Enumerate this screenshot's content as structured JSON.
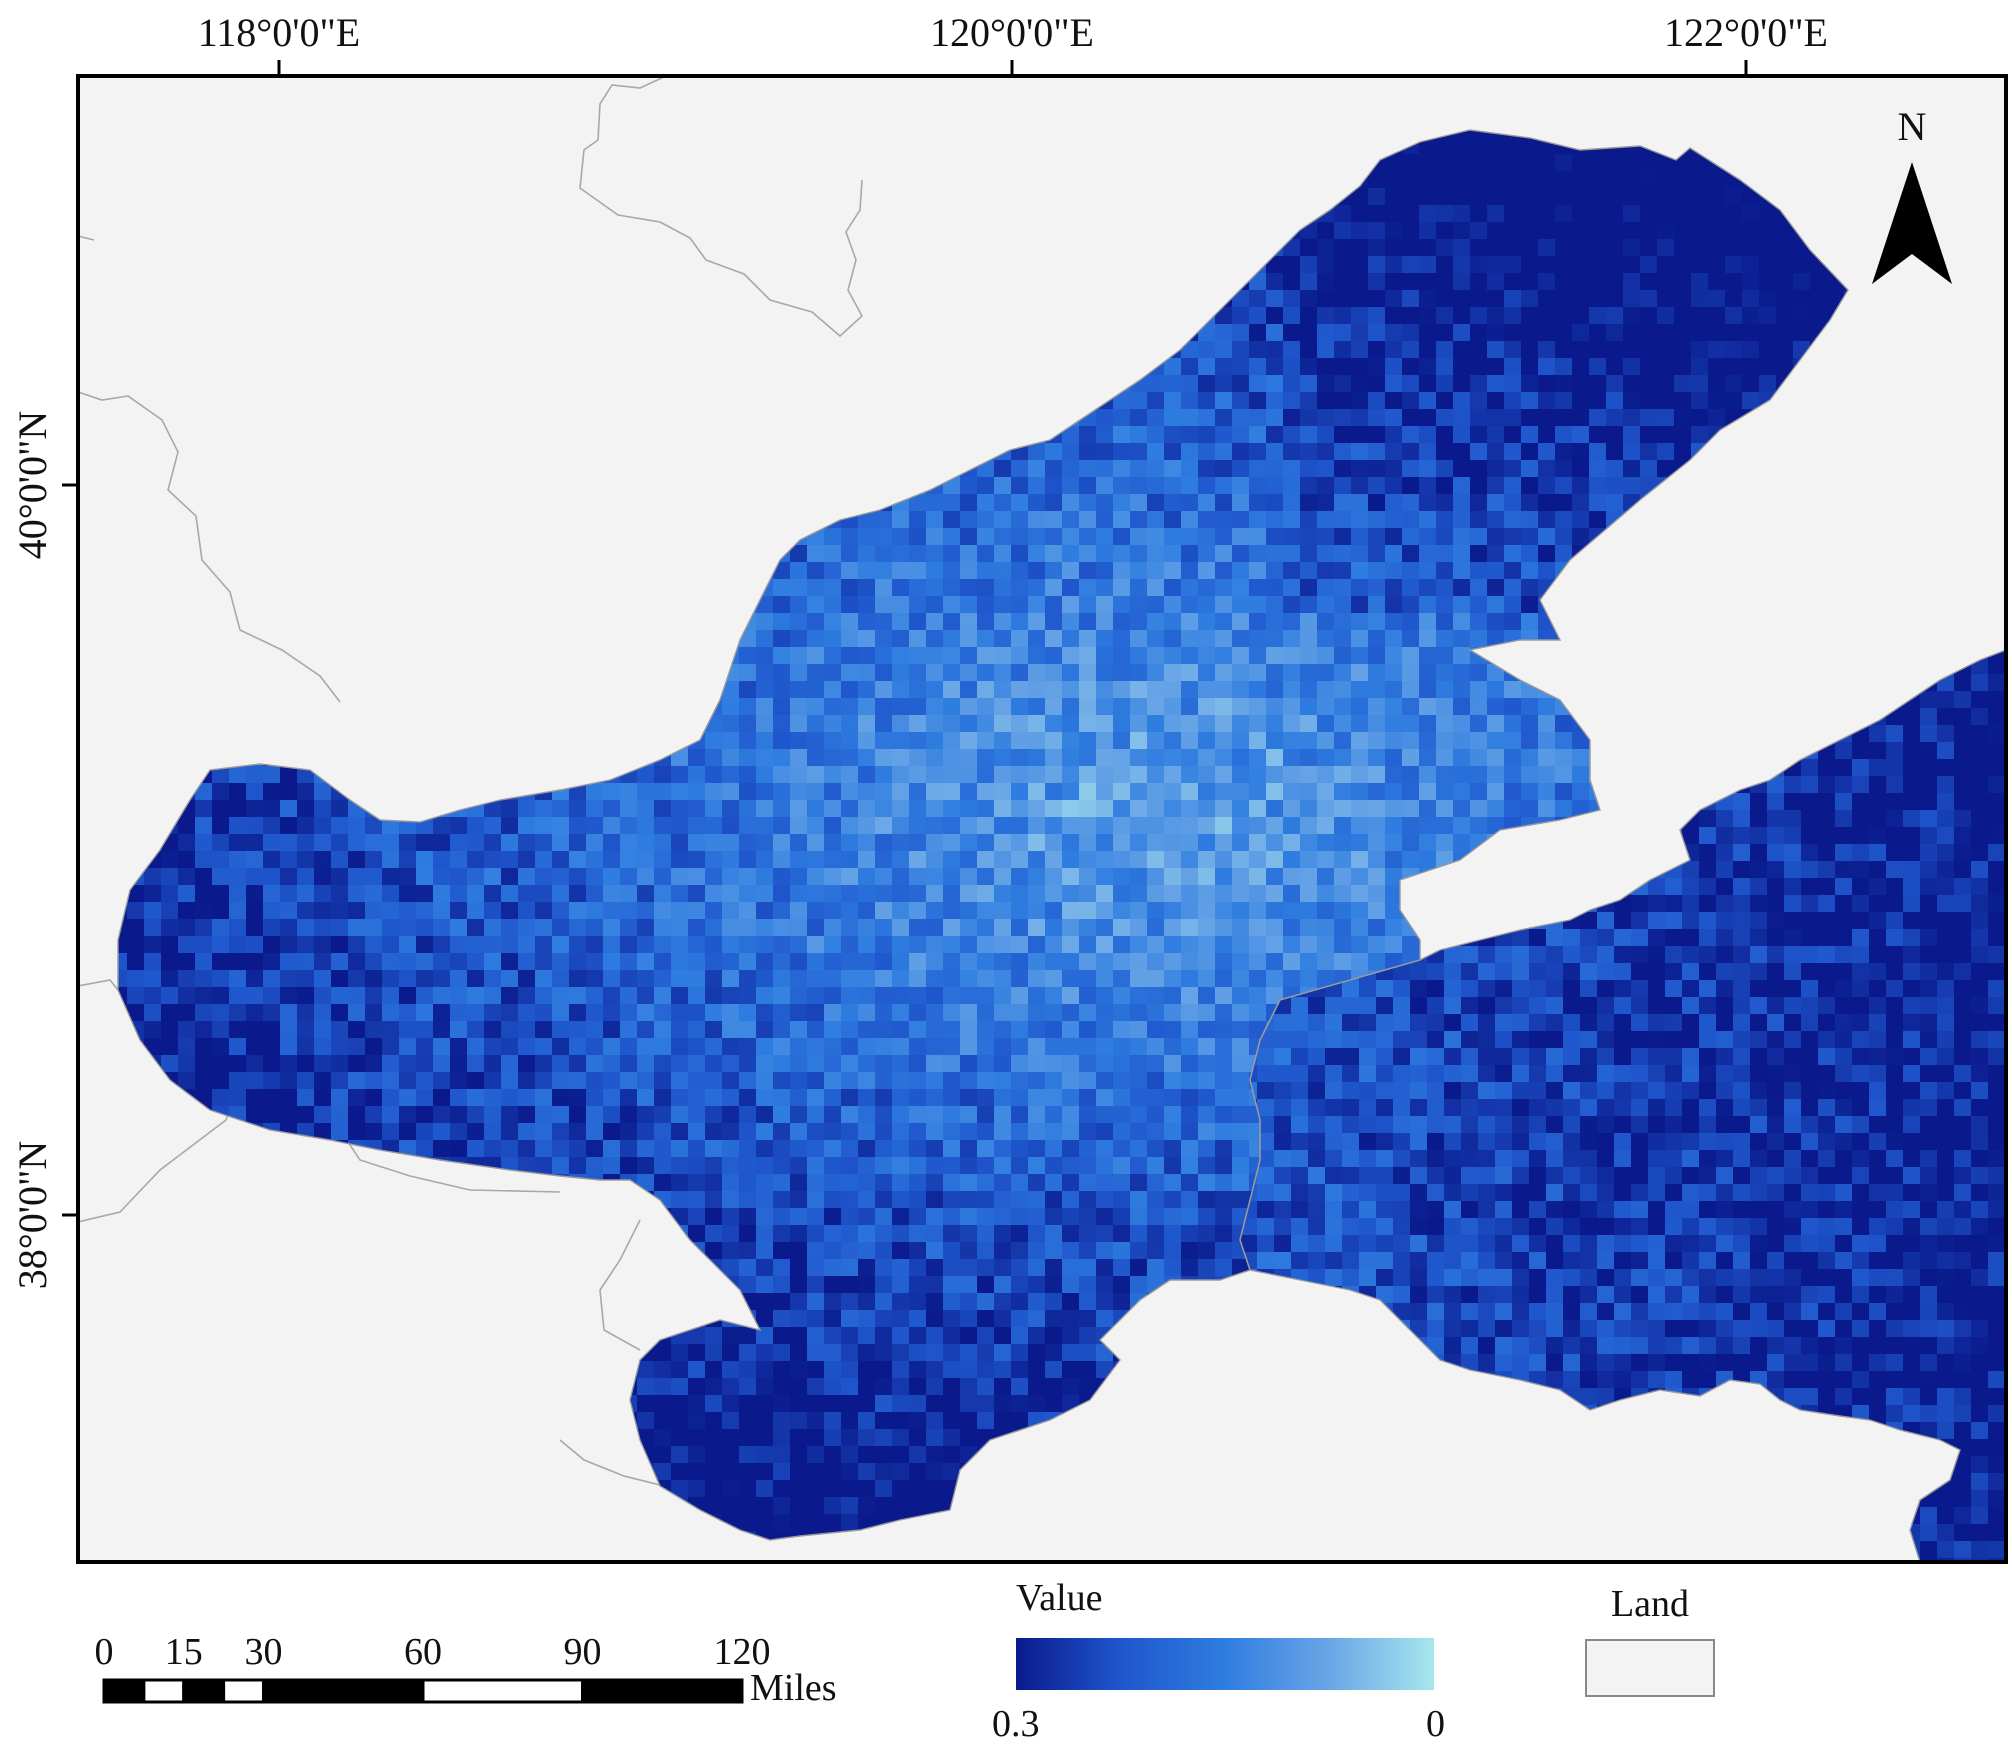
{
  "map": {
    "lon_labels": [
      "118°0'0\"E",
      "120°0'0\"E",
      "122°0'0\"E"
    ],
    "lat_labels": [
      "40°0'0\"N",
      "38°0'0\"N"
    ],
    "north_arrow_label": "N",
    "colors": {
      "land": "#f3f3f3",
      "land_border": "#a8a8a8",
      "coast_white": "#ffffff",
      "frame": "#000000"
    }
  },
  "legend": {
    "title": "Value",
    "min_label": "0.3",
    "max_label": "0",
    "gradient": [
      "#0a1a8c",
      "#1f56cc",
      "#2f7de0",
      "#6aa6e6",
      "#a8e6ee"
    ],
    "land_label": "Land",
    "land_color": "#f3f3f3"
  },
  "scale_bar": {
    "ticks": [
      "0",
      "15",
      "30",
      "60",
      "90",
      "120"
    ],
    "unit": "Miles"
  }
}
